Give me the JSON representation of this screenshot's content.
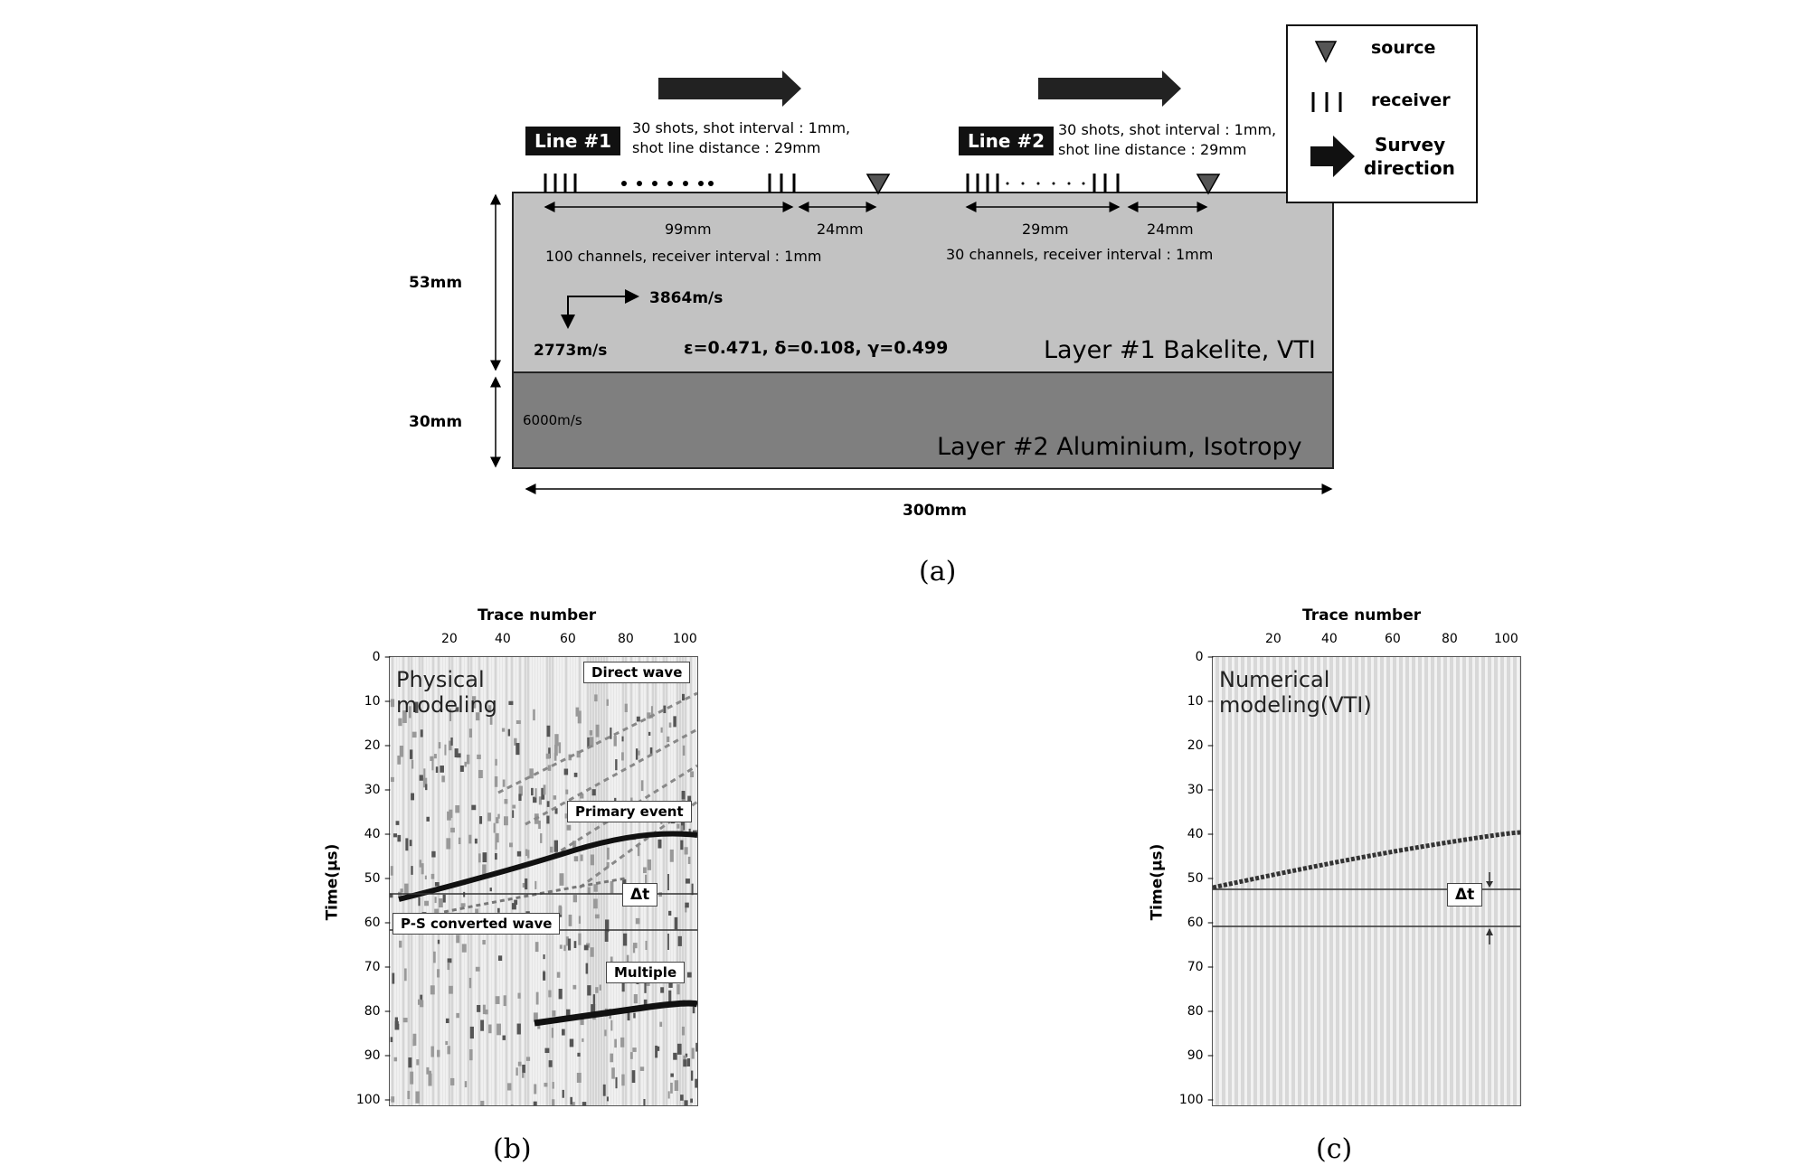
{
  "panel_a": {
    "caption": "(a)",
    "legend": {
      "source": "source",
      "receiver": "receiver",
      "survey_direction_line1": "Survey",
      "survey_direction_line2": "direction"
    },
    "line1": {
      "title": "Line #1",
      "shots_text_1": "30 shots, shot interval : 1mm,",
      "shots_text_2": "shot line distance : 29mm",
      "spread_label": "99mm",
      "offset_label": "24mm",
      "channels_text": "100 channels, receiver interval : 1mm"
    },
    "line2": {
      "title": "Line #2",
      "shots_text_1": "30 shots, shot interval : 1mm,",
      "shots_text_2": "shot line distance : 29mm",
      "spread_label": "29mm",
      "offset_label": "24mm",
      "channels_text": "30 channels, receiver interval : 1mm"
    },
    "layer1": {
      "name": "Layer #1 Bakelite, VTI",
      "thickness": "53mm",
      "vh": "3864m/s",
      "vv": "2773m/s",
      "params": "ε=0.471, δ=0.108, γ=0.499",
      "color": "#c2c2c2"
    },
    "layer2": {
      "name": "Layer #2 Aluminium, Isotropy",
      "thickness": "30mm",
      "velocity": "6000m/s",
      "color": "#7f7f7f"
    },
    "width_label": "300mm"
  },
  "panel_b": {
    "caption": "(b)",
    "title_line1": "Physical",
    "title_line2": "modeling",
    "xlabel": "Trace number",
    "ylabel": "Time(μs)",
    "xticks": [
      "20",
      "40",
      "60",
      "80",
      "100"
    ],
    "yticks": [
      "0",
      "10",
      "20",
      "30",
      "40",
      "50",
      "60",
      "70",
      "80",
      "90",
      "100"
    ],
    "annotations": {
      "direct": "Direct wave",
      "primary": "Primary event",
      "delta": "Δt",
      "ps": "P-S converted wave",
      "multiple": "Multiple"
    }
  },
  "panel_c": {
    "caption": "(c)",
    "title_line1": "Numerical",
    "title_line2": "modeling(VTI)",
    "xlabel": "Trace number",
    "ylabel": "Time(μs)",
    "xticks": [
      "20",
      "40",
      "60",
      "80",
      "100"
    ],
    "yticks": [
      "0",
      "10",
      "20",
      "30",
      "40",
      "50",
      "60",
      "70",
      "80",
      "90",
      "100"
    ],
    "annotations": {
      "delta": "Δt"
    }
  }
}
